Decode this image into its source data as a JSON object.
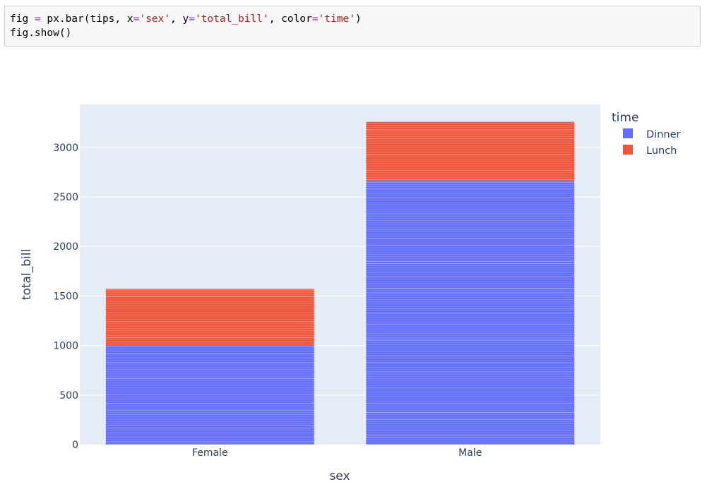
{
  "code_cell": {
    "lines": [
      [
        {
          "t": "fig ",
          "c": ""
        },
        {
          "t": "=",
          "c": "op"
        },
        {
          "t": " px.bar(tips, x",
          "c": ""
        },
        {
          "t": "=",
          "c": "op"
        },
        {
          "t": "'sex'",
          "c": "str"
        },
        {
          "t": ", y",
          "c": ""
        },
        {
          "t": "=",
          "c": "op"
        },
        {
          "t": "'total_bill'",
          "c": "str"
        },
        {
          "t": ", color",
          "c": ""
        },
        {
          "t": "=",
          "c": "op"
        },
        {
          "t": "'time'",
          "c": "str"
        },
        {
          "t": ")",
          "c": ""
        }
      ],
      [
        {
          "t": "fig.show()",
          "c": ""
        }
      ]
    ]
  },
  "chart_data": {
    "type": "bar",
    "barmode": "stack",
    "categories": [
      "Female",
      "Male"
    ],
    "series": [
      {
        "name": "Dinner",
        "color": "#636efa",
        "values": [
          997,
          2660
        ]
      },
      {
        "name": "Lunch",
        "color": "#ef553b",
        "values": [
          574,
          597
        ]
      }
    ],
    "xlabel": "sex",
    "ylabel": "total_bill",
    "ylim": [
      0,
      3433
    ],
    "yticks": [
      0,
      500,
      1000,
      1500,
      2000,
      2500,
      3000
    ],
    "grid": true,
    "legend": {
      "title": "time",
      "placement": "top-right",
      "entries": [
        "Dinner",
        "Lunch"
      ]
    },
    "plot_bgcolor": "#e5ecf6"
  }
}
